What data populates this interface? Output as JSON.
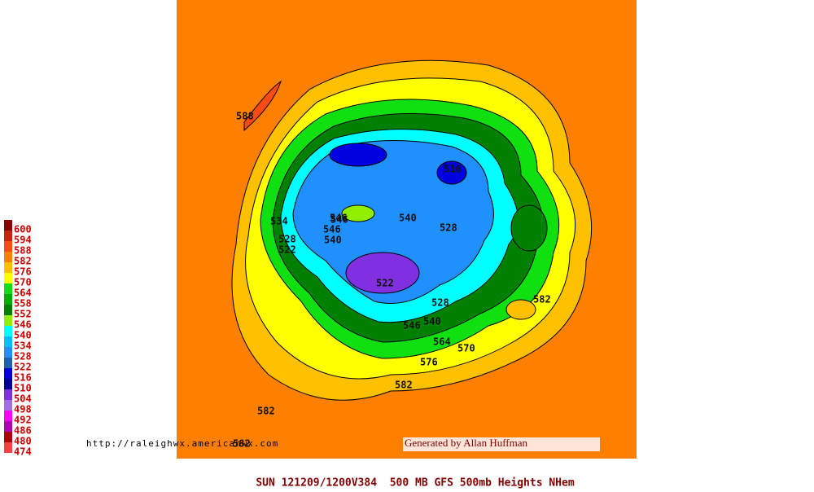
{
  "map": {
    "footer": "SUN 121209/1200V384  500 MB GFS 500mb Heights NHem",
    "url": "http://raleighwx.americanwx.com",
    "credit": "Generated by Allan Huffman",
    "legend": [
      {
        "value": 600,
        "color": "#8b0000"
      },
      {
        "value": 594,
        "color": "#d02010"
      },
      {
        "value": 588,
        "color": "#ff4a10"
      },
      {
        "value": 582,
        "color": "#ff8000"
      },
      {
        "value": 576,
        "color": "#ffc000"
      },
      {
        "value": 570,
        "color": "#ffff00"
      },
      {
        "value": 564,
        "color": "#10e010"
      },
      {
        "value": 558,
        "color": "#00b000"
      },
      {
        "value": 552,
        "color": "#008000"
      },
      {
        "value": 546,
        "color": "#90f000"
      },
      {
        "value": 540,
        "color": "#00ffff"
      },
      {
        "value": 534,
        "color": "#00c0ff"
      },
      {
        "value": 528,
        "color": "#2090ff"
      },
      {
        "value": 522,
        "color": "#2060b0"
      },
      {
        "value": 516,
        "color": "#0000e0"
      },
      {
        "value": 510,
        "color": "#0000a0"
      },
      {
        "value": 504,
        "color": "#8030e0"
      },
      {
        "value": 498,
        "color": "#a070e0"
      },
      {
        "value": 492,
        "color": "#ff00ff"
      },
      {
        "value": 486,
        "color": "#b000b0"
      },
      {
        "value": 480,
        "color": "#b00000"
      },
      {
        "value": 474,
        "color": "#ff4040"
      }
    ],
    "contour_labels": [
      588,
      582,
      582,
      582,
      582,
      570,
      546,
      540,
      534,
      528,
      522,
      516,
      546,
      540,
      528,
      522,
      546,
      540,
      528,
      546,
      564,
      576
    ]
  }
}
